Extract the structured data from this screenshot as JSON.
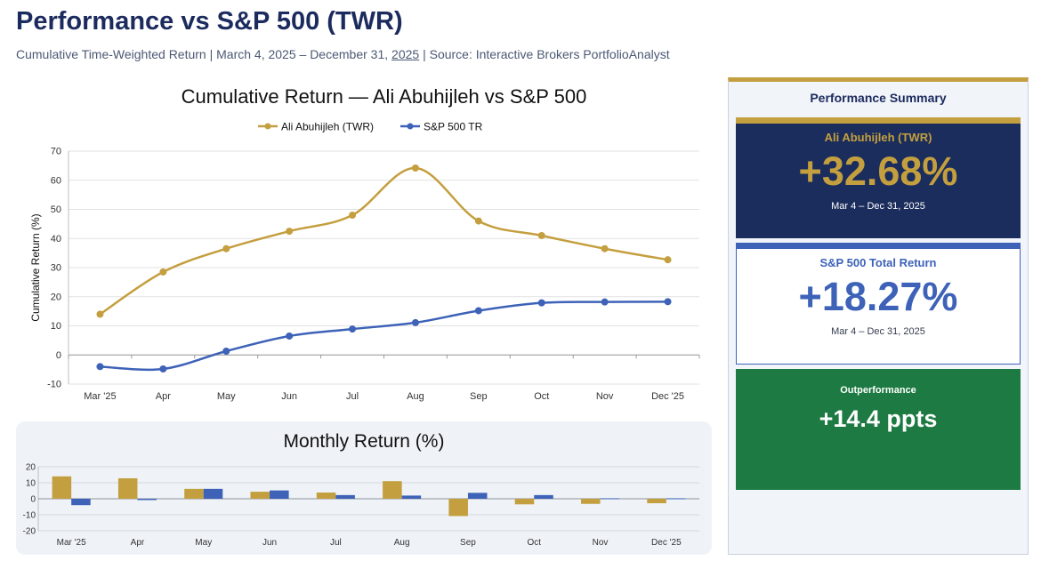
{
  "header": {
    "title": "Performance vs S&P 500 (TWR)",
    "subtitle_main": "Cumulative Time-Weighted Return | March 4, 2025 – December 31,",
    "subtitle_year": "2025",
    "subtitle_source": "|  Source: Interactive Brokers PortfolioAnalyst"
  },
  "summary": {
    "title": "Performance Summary",
    "ali": {
      "label": "Ali Abuhijleh (TWR)",
      "value": "+32.68%",
      "date": "Mar 4 – Dec 31, 2025"
    },
    "sp": {
      "label": "S&P 500 Total Return",
      "value": "+18.27%",
      "date": "Mar 4 – Dec 31, 2025"
    },
    "out": {
      "label": "Outperformance",
      "value": "+14.4 ppts"
    }
  },
  "colors": {
    "ali": "#c49f3f",
    "sp": "#3d62b8",
    "navy": "#1b2d5c",
    "green": "#1d7a42"
  },
  "chart_data": [
    {
      "type": "line",
      "title": "Cumulative Return — Ali Abuhijleh vs S&P 500",
      "xlabel": "",
      "ylabel": "Cumulative Return (%)",
      "ylim": [
        -10,
        70
      ],
      "yticks": [
        -10,
        0,
        10,
        20,
        30,
        40,
        50,
        60,
        70
      ],
      "grid": true,
      "legend": "top-center",
      "categories": [
        "Mar '25",
        "Apr",
        "May",
        "Jun",
        "Jul",
        "Aug",
        "Sep",
        "Oct",
        "Nov",
        "Dec '25"
      ],
      "series": [
        {
          "name": "Ali Abuhijleh (TWR)",
          "color": "#c49f3f",
          "values": [
            14,
            28.5,
            36.5,
            42.5,
            48,
            64.2,
            46,
            41,
            36.5,
            32.7
          ]
        },
        {
          "name": "S&P 500 TR",
          "color": "#3d62b8",
          "values": [
            -4,
            -4.8,
            1.3,
            6.5,
            8.9,
            11.1,
            15.2,
            17.9,
            18.2,
            18.3
          ]
        }
      ]
    },
    {
      "type": "bar",
      "title": "Monthly Return (%)",
      "xlabel": "",
      "ylabel": "",
      "ylim": [
        -20,
        20
      ],
      "yticks": [
        -20,
        -10,
        0,
        10,
        20
      ],
      "grid": true,
      "categories": [
        "Mar '25",
        "Apr",
        "May",
        "Jun",
        "Jul",
        "Aug",
        "Sep",
        "Oct",
        "Nov",
        "Dec '25"
      ],
      "series": [
        {
          "name": "Ali Abuhijleh (TWR)",
          "color": "#c49f3f",
          "values": [
            14,
            12.8,
            6.2,
            4.4,
            3.9,
            11,
            -10.8,
            -3.5,
            -3.2,
            -2.8
          ]
        },
        {
          "name": "S&P 500 TR",
          "color": "#3d62b8",
          "values": [
            -4,
            -0.8,
            6.2,
            5.2,
            2.3,
            2,
            3.7,
            2.3,
            0.3,
            0.3
          ]
        }
      ]
    }
  ]
}
